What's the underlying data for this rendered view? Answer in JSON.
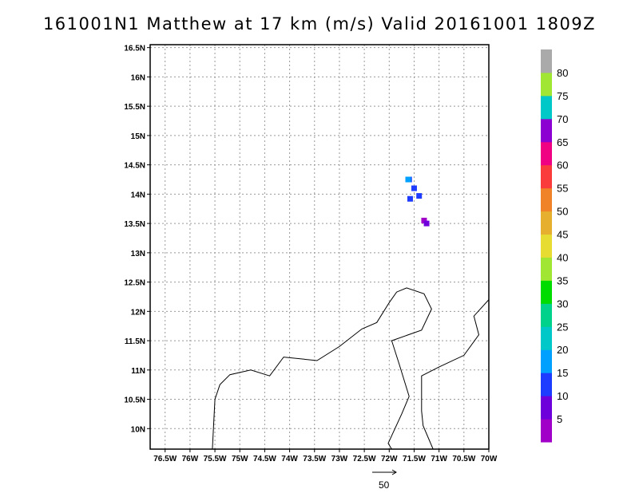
{
  "title": "161001N1 Matthew at 17 km (m/s) Valid 20161001 1809Z",
  "axes": {
    "lon_labels": [
      "76.5W",
      "76W",
      "75.5W",
      "75W",
      "74.5W",
      "74W",
      "73.5W",
      "73W",
      "72.5W",
      "72W",
      "71.5W",
      "71W",
      "70.5W",
      "70W"
    ],
    "lat_labels": [
      "16.5N",
      "16N",
      "15.5N",
      "15N",
      "14.5N",
      "14N",
      "13.5N",
      "13N",
      "12.5N",
      "12N",
      "11.5N",
      "11N",
      "10.5N",
      "10N"
    ],
    "lon_range": [
      -76.8,
      -70.0
    ],
    "lat_range": [
      9.65,
      16.55
    ],
    "grid_step": 0.5,
    "grid": true
  },
  "colorbar": {
    "labels": [
      "5",
      "10",
      "15",
      "20",
      "25",
      "30",
      "35",
      "40",
      "45",
      "50",
      "55",
      "60",
      "65",
      "70",
      "75",
      "80"
    ],
    "colors": [
      "#a000c8",
      "#6e00dc",
      "#1e3cff",
      "#00a0ff",
      "#00c8c8",
      "#00d28c",
      "#00dc00",
      "#a0e632",
      "#e6dc32",
      "#e6af2d",
      "#f08228",
      "#fa3c3c",
      "#f00082",
      "#8c00d2",
      "#00c8c8",
      "#a0e632",
      "#aaaaaa"
    ]
  },
  "wind_field": [
    {
      "lon": -71.6,
      "lat": 14.25,
      "speed": 12,
      "color": "#1e3cff"
    },
    {
      "lon": -71.5,
      "lat": 14.1,
      "speed": 11,
      "color": "#1e3cff"
    },
    {
      "lon": -71.4,
      "lat": 13.97,
      "speed": 11,
      "color": "#1e3cff"
    },
    {
      "lon": -71.58,
      "lat": 13.92,
      "speed": 11,
      "color": "#1e3cff"
    },
    {
      "lon": -71.62,
      "lat": 14.25,
      "speed": 20,
      "color": "#00a0ff"
    },
    {
      "lon": -71.3,
      "lat": 13.55,
      "speed": 5,
      "color": "#a000c8"
    },
    {
      "lon": -71.25,
      "lat": 13.5,
      "speed": 8,
      "color": "#6e00dc"
    }
  ],
  "reference_vector": {
    "label": "50",
    "units": "m/s"
  }
}
